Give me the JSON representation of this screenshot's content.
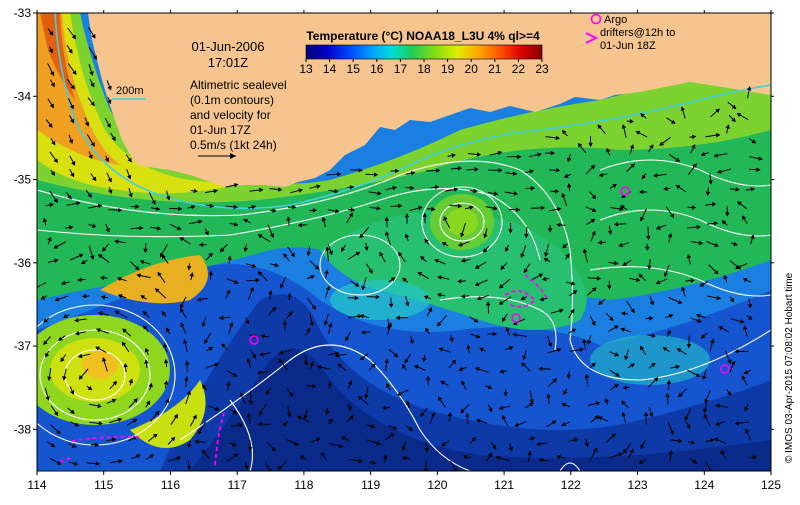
{
  "map": {
    "date_label": "01-Jun-2006",
    "time_label": "17:01Z",
    "isobath_label": "200m",
    "sealevel_label_lines": [
      "Altimetric sealevel",
      "(0.1m contours)",
      "and velocity for",
      "01-Jun 17Z",
      "0.5m/s (1kt 24h)"
    ],
    "colorbar": {
      "title": "Temperature (°C) NOAA18_L3U 4% ql>=4",
      "min": 13,
      "max": 23,
      "tick_labels": [
        "13",
        "14",
        "15",
        "16",
        "17",
        "18",
        "19",
        "20",
        "21",
        "22",
        "23"
      ],
      "colors": [
        "#00007a",
        "#0000c8",
        "#0044ff",
        "#0099ff",
        "#00dddd",
        "#22cc55",
        "#88dd11",
        "#ddee00",
        "#ffaa00",
        "#ff5500",
        "#dd0000",
        "#880000"
      ]
    },
    "legend": {
      "circle_text": "Argo",
      "arrow_text_lines": [
        "drifters@12h to",
        "01-Jun 18Z"
      ]
    },
    "credit": "© IMOS 03-Apr-2015 07:08:02 Hobart time",
    "axes": {
      "x_range": [
        114,
        125
      ],
      "y_range": [
        -38.5,
        -33
      ],
      "x_tick_labels": [
        "114",
        "115",
        "116",
        "117",
        "118",
        "119",
        "120",
        "121",
        "122",
        "123",
        "124",
        "125"
      ],
      "y_tick_labels": [
        "-33",
        "-34",
        "-35",
        "-36",
        "-37",
        "-38"
      ]
    },
    "colors": {
      "land": "#f5c48f",
      "isobath": "#40d0e0",
      "contour": "#ffffff",
      "marker": "#ff00ff",
      "arrow": "#000000"
    }
  }
}
